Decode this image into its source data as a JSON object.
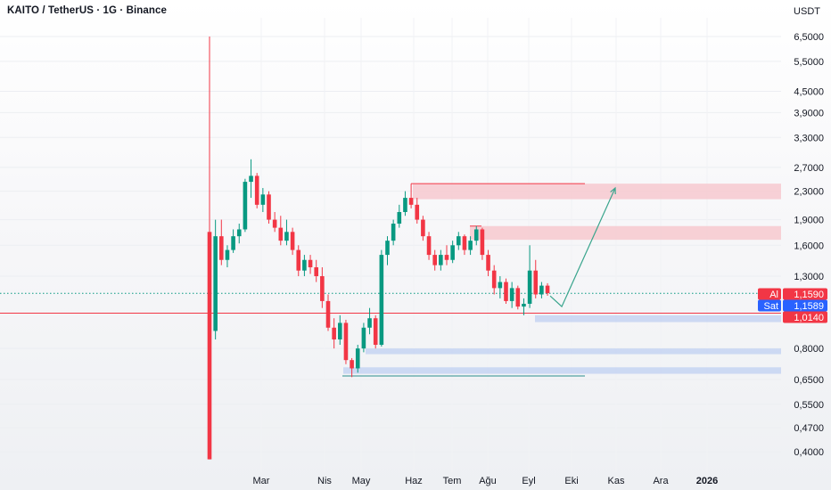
{
  "header": {
    "title": "KAITO / TetherUS · 1G · Binance",
    "currency": "USDT"
  },
  "colors": {
    "up": "#089981",
    "down": "#f23645",
    "buy_tag": "#f23645",
    "sell_tag": "#2962ff",
    "level_line": "#f23645",
    "resistance_zone": "#f7c9cf",
    "support_zone": "#c5d3f2",
    "projection": "#3aa58d"
  },
  "chart_data": {
    "type": "candlestick",
    "symbol": "KAITO / TetherUS",
    "interval": "1G",
    "exchange": "Binance",
    "y_scale": "log",
    "ylim": [
      0.36,
      7.5
    ],
    "y_ticks": [
      {
        "value": 6.5,
        "label": "6,5000"
      },
      {
        "value": 5.5,
        "label": "5,5000"
      },
      {
        "value": 4.5,
        "label": "4,5000"
      },
      {
        "value": 3.9,
        "label": "3,9000"
      },
      {
        "value": 3.3,
        "label": "3,3000"
      },
      {
        "value": 2.7,
        "label": "2,7000"
      },
      {
        "value": 2.3,
        "label": "2,3000"
      },
      {
        "value": 1.9,
        "label": "1,9000"
      },
      {
        "value": 1.6,
        "label": "1,6000"
      },
      {
        "value": 1.3,
        "label": "1,3000"
      },
      {
        "value": 0.8,
        "label": "0,8000"
      },
      {
        "value": 0.65,
        "label": "0,6500"
      },
      {
        "value": 0.55,
        "label": "0,5500"
      },
      {
        "value": 0.47,
        "label": "0,4700"
      },
      {
        "value": 0.4,
        "label": "0,4000"
      }
    ],
    "x_ticks": [
      {
        "label": "Mar",
        "bold": false
      },
      {
        "label": "Nis",
        "bold": false
      },
      {
        "label": "May",
        "bold": false
      },
      {
        "label": "Haz",
        "bold": false
      },
      {
        "label": "Tem",
        "bold": false
      },
      {
        "label": "Ağu",
        "bold": false
      },
      {
        "label": "Eyl",
        "bold": false
      },
      {
        "label": "Eki",
        "bold": false
      },
      {
        "label": "Kas",
        "bold": false
      },
      {
        "label": "Ara",
        "bold": false
      },
      {
        "label": "2026",
        "bold": true
      }
    ],
    "price_tags": [
      {
        "label": "Al",
        "value": "1,1590",
        "price": 1.159,
        "kind": "buy"
      },
      {
        "label": "Sat",
        "value": "1,1589",
        "price": 1.1589,
        "kind": "sell"
      },
      {
        "label": "",
        "value": "1,0140",
        "price": 1.014,
        "kind": "level"
      }
    ],
    "zones": [
      {
        "kind": "resistance",
        "top": 2.42,
        "bottom": 2.18
      },
      {
        "kind": "resistance",
        "top": 1.82,
        "bottom": 1.66
      },
      {
        "kind": "support",
        "top": 1.0,
        "bottom": 0.955
      },
      {
        "kind": "support",
        "top": 0.8,
        "bottom": 0.77
      },
      {
        "kind": "support",
        "top": 0.705,
        "bottom": 0.675
      }
    ],
    "key_levels": [
      2.42,
      1.82,
      0.665,
      1.014
    ],
    "projection": [
      {
        "label": "Eyl",
        "price": 1.06
      },
      {
        "label": "Eki",
        "price": 2.35
      }
    ],
    "candles": [
      [
        1.75,
        6.5,
        0.38,
        0.38
      ],
      [
        0.9,
        1.9,
        0.85,
        1.7
      ],
      [
        1.7,
        1.9,
        1.4,
        1.45
      ],
      [
        1.45,
        1.6,
        1.38,
        1.55
      ],
      [
        1.55,
        1.78,
        1.52,
        1.7
      ],
      [
        1.7,
        1.85,
        1.62,
        1.78
      ],
      [
        1.78,
        2.5,
        1.75,
        2.45
      ],
      [
        2.45,
        2.85,
        2.2,
        2.55
      ],
      [
        2.55,
        2.6,
        2.05,
        2.1
      ],
      [
        2.1,
        2.35,
        2.0,
        2.25
      ],
      [
        2.25,
        2.3,
        1.85,
        1.9
      ],
      [
        1.9,
        2.0,
        1.75,
        1.8
      ],
      [
        1.8,
        1.95,
        1.6,
        1.65
      ],
      [
        1.65,
        1.9,
        1.6,
        1.75
      ],
      [
        1.75,
        1.8,
        1.5,
        1.55
      ],
      [
        1.55,
        1.6,
        1.3,
        1.35
      ],
      [
        1.35,
        1.5,
        1.3,
        1.45
      ],
      [
        1.45,
        1.5,
        1.32,
        1.38
      ],
      [
        1.38,
        1.45,
        1.25,
        1.3
      ],
      [
        1.3,
        1.38,
        1.05,
        1.1
      ],
      [
        1.1,
        1.15,
        0.9,
        0.92
      ],
      [
        0.92,
        0.98,
        0.8,
        0.85
      ],
      [
        0.85,
        1.0,
        0.82,
        0.95
      ],
      [
        0.95,
        0.97,
        0.72,
        0.74
      ],
      [
        0.74,
        0.75,
        0.66,
        0.7
      ],
      [
        0.7,
        0.82,
        0.68,
        0.8
      ],
      [
        0.8,
        0.95,
        0.78,
        0.92
      ],
      [
        0.92,
        1.05,
        0.88,
        0.98
      ],
      [
        0.98,
        1.0,
        0.8,
        0.82
      ],
      [
        0.82,
        1.55,
        0.81,
        1.5
      ],
      [
        1.5,
        1.7,
        1.4,
        1.65
      ],
      [
        1.65,
        1.9,
        1.6,
        1.85
      ],
      [
        1.85,
        2.1,
        1.8,
        2.0
      ],
      [
        2.0,
        2.3,
        1.95,
        2.2
      ],
      [
        2.2,
        2.42,
        2.05,
        2.1
      ],
      [
        2.1,
        2.2,
        1.85,
        1.9
      ],
      [
        1.9,
        1.95,
        1.65,
        1.7
      ],
      [
        1.7,
        1.75,
        1.45,
        1.5
      ],
      [
        1.5,
        1.55,
        1.35,
        1.4
      ],
      [
        1.4,
        1.55,
        1.35,
        1.5
      ],
      [
        1.5,
        1.6,
        1.4,
        1.45
      ],
      [
        1.45,
        1.65,
        1.42,
        1.6
      ],
      [
        1.6,
        1.75,
        1.55,
        1.7
      ],
      [
        1.7,
        1.72,
        1.5,
        1.55
      ],
      [
        1.55,
        1.7,
        1.5,
        1.65
      ],
      [
        1.65,
        1.82,
        1.6,
        1.78
      ],
      [
        1.78,
        1.8,
        1.45,
        1.5
      ],
      [
        1.5,
        1.55,
        1.3,
        1.35
      ],
      [
        1.35,
        1.4,
        1.15,
        1.2
      ],
      [
        1.2,
        1.3,
        1.12,
        1.25
      ],
      [
        1.25,
        1.28,
        1.08,
        1.1
      ],
      [
        1.1,
        1.25,
        1.05,
        1.2
      ],
      [
        1.2,
        1.22,
        1.04,
        1.06
      ],
      [
        1.06,
        1.12,
        1.0,
        1.08
      ],
      [
        1.08,
        1.6,
        1.05,
        1.35
      ],
      [
        1.35,
        1.45,
        1.12,
        1.15
      ],
      [
        1.15,
        1.25,
        1.12,
        1.22
      ],
      [
        1.22,
        1.24,
        1.14,
        1.16
      ]
    ]
  }
}
